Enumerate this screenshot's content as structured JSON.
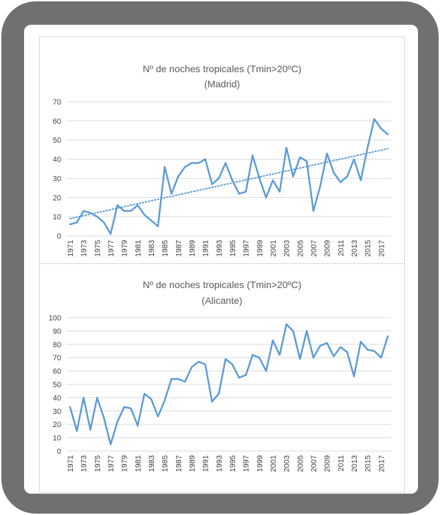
{
  "chart_data": [
    {
      "type": "line",
      "title": "Nº de noches tropicales (Tmin>20ºC)",
      "subtitle": "(Madrid)",
      "ylim": [
        0,
        70
      ],
      "yticks": [
        0,
        10,
        20,
        30,
        40,
        50,
        60,
        70
      ],
      "x": [
        1971,
        1972,
        1973,
        1974,
        1975,
        1976,
        1977,
        1978,
        1979,
        1980,
        1981,
        1982,
        1983,
        1984,
        1985,
        1986,
        1987,
        1988,
        1989,
        1990,
        1991,
        1992,
        1993,
        1994,
        1995,
        1996,
        1997,
        1998,
        1999,
        2000,
        2001,
        2002,
        2003,
        2004,
        2005,
        2006,
        2007,
        2008,
        2009,
        2010,
        2011,
        2012,
        2013,
        2014,
        2015,
        2016,
        2017,
        2018
      ],
      "xtick_labels": [
        "1971",
        "1973",
        "1975",
        "1977",
        "1979",
        "1981",
        "1983",
        "1985",
        "1987",
        "1989",
        "1991",
        "1993",
        "1995",
        "1997",
        "1999",
        "2001",
        "2003",
        "2005",
        "2007",
        "2009",
        "2011",
        "2013",
        "2015",
        "2017"
      ],
      "series": [
        {
          "values": [
            6,
            7,
            13,
            12,
            10,
            7,
            1,
            16,
            13,
            13,
            16,
            11,
            8,
            5,
            36,
            22,
            31,
            36,
            38,
            38,
            40,
            27,
            30,
            38,
            29,
            22,
            23,
            42,
            30,
            20,
            29,
            23,
            46,
            31,
            41,
            39,
            13,
            26,
            43,
            33,
            28,
            31,
            40,
            29,
            46,
            61,
            56,
            53
          ],
          "color": "#5b9bd5"
        }
      ],
      "trendline": {
        "start": 9,
        "end": 45.5,
        "color": "#5b9bd5",
        "style": "dotted"
      },
      "grid": true
    },
    {
      "type": "line",
      "title": "Nº de noches tropicales (Tmin>20ºC)",
      "subtitle": "(Alicante)",
      "ylim": [
        0,
        100
      ],
      "yticks": [
        0,
        10,
        20,
        30,
        40,
        50,
        60,
        70,
        80,
        90,
        100
      ],
      "x": [
        1971,
        1972,
        1973,
        1974,
        1975,
        1976,
        1977,
        1978,
        1979,
        1980,
        1981,
        1982,
        1983,
        1984,
        1985,
        1986,
        1987,
        1988,
        1989,
        1990,
        1991,
        1992,
        1993,
        1994,
        1995,
        1996,
        1997,
        1998,
        1999,
        2000,
        2001,
        2002,
        2003,
        2004,
        2005,
        2006,
        2007,
        2008,
        2009,
        2010,
        2011,
        2012,
        2013,
        2014,
        2015,
        2016,
        2017,
        2018
      ],
      "xtick_labels": [
        "1971",
        "1973",
        "1975",
        "1977",
        "1979",
        "1981",
        "1983",
        "1985",
        "1987",
        "1989",
        "1991",
        "1993",
        "1995",
        "1997",
        "1999",
        "2001",
        "2003",
        "2005",
        "2007",
        "2009",
        "2011",
        "2013",
        "2015",
        "2017"
      ],
      "series": [
        {
          "values": [
            33,
            15,
            40,
            16,
            40,
            25,
            5,
            22,
            33,
            32,
            19,
            43,
            39,
            26,
            38,
            54,
            54,
            52,
            63,
            67,
            65,
            37,
            43,
            69,
            65,
            55,
            57,
            72,
            70,
            60,
            83,
            72,
            95,
            90,
            69,
            90,
            70,
            79,
            81,
            71,
            78,
            74,
            56,
            82,
            76,
            75,
            70,
            86
          ],
          "color": "#5b9bd5"
        }
      ],
      "grid": true
    }
  ]
}
